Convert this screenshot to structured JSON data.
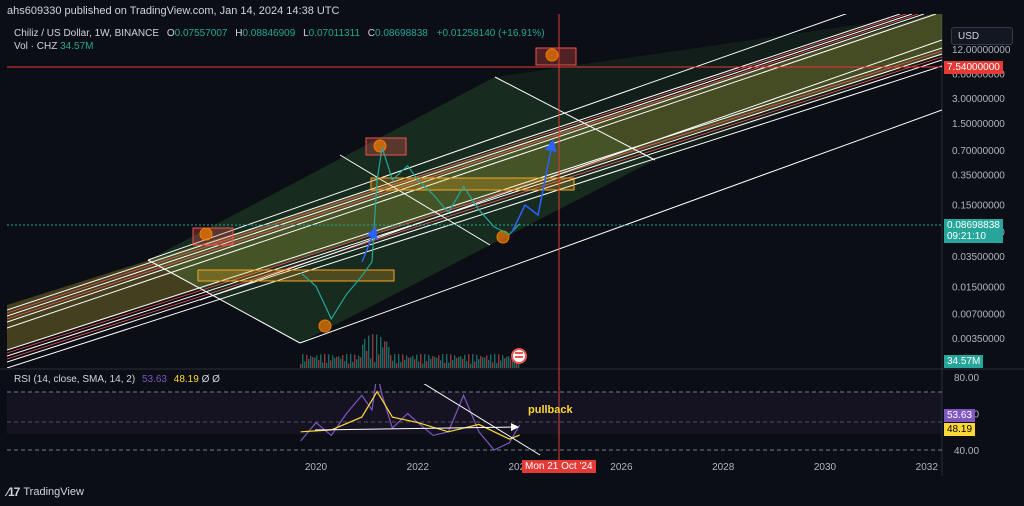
{
  "header": {
    "published": "ahs609330 published on TradingView.com, Jan 14, 2024 14:38 UTC"
  },
  "legend": {
    "symbol": "Chiliz / US Dollar, 1W, BINANCE",
    "o_label": "O",
    "o_value": "0.07557007",
    "h_label": "H",
    "h_value": "0.08846909",
    "l_label": "L",
    "l_value": "0.07011311",
    "c_label": "C",
    "c_value": "0.08698838",
    "change": "+0.01258140 (+16.91%)",
    "vol_label": "Vol · CHZ",
    "vol_value": "34.57M"
  },
  "rsi_legend": {
    "label": "RSI (14, close, SMA, 14, 2)",
    "rsi_value": "53.63",
    "sma_value": "48.19",
    "extra": "Ø Ø"
  },
  "currency_button": "USD",
  "annotation": "pullback",
  "crosshair": {
    "price_label": "7.54000000",
    "date_label": "Mon 21 Oct '24"
  },
  "current_price": {
    "price": "0.08698838",
    "countdown": "09:21:10"
  },
  "volume_tag": "34.57M",
  "rsi_tags": {
    "rsi": "53.63",
    "sma": "48.19"
  },
  "footer": {
    "brand": "TradingView"
  },
  "colors": {
    "background": "#0c0e15",
    "up": "#26a69a",
    "down": "#ef5350",
    "rsi_line": "#7e57c2",
    "rsi_sma": "#fdd835",
    "crosshair": "#e53935",
    "arrow": "#2962ff",
    "zone_fill": "#d9c33a"
  },
  "chart_data": {
    "type": "line",
    "price_axis": {
      "scale": "log",
      "ticks": [
        "12.00000000",
        "7.54000000",
        "6.00000000",
        "3.00000000",
        "1.50000000",
        "0.70000000",
        "0.35000000",
        "0.15000000",
        "0.07000000",
        "0.03500000",
        "0.01500000",
        "0.00700000",
        "0.00350000"
      ]
    },
    "time_axis": {
      "ticks": [
        "2020",
        "2022",
        "2024",
        "2026",
        "2028",
        "2030",
        "2032"
      ]
    },
    "rsi_axis": {
      "ticks": [
        "80.00",
        "60.00",
        "40.00"
      ]
    },
    "price_series": {
      "name": "CHZ/USD",
      "x": [
        2019.7,
        2020.0,
        2020.3,
        2020.6,
        2020.9,
        2021.1,
        2021.2,
        2021.3,
        2021.5,
        2021.8,
        2022.0,
        2022.3,
        2022.6,
        2022.9,
        2023.2,
        2023.5,
        2023.8,
        2024.0
      ],
      "values": [
        0.022,
        0.015,
        0.006,
        0.012,
        0.02,
        0.03,
        0.3,
        0.75,
        0.3,
        0.45,
        0.3,
        0.2,
        0.12,
        0.25,
        0.13,
        0.08,
        0.065,
        0.087
      ]
    },
    "rsi_series": {
      "name": "RSI",
      "x": [
        2019.7,
        2020.0,
        2020.3,
        2020.6,
        2020.9,
        2021.1,
        2021.2,
        2021.3,
        2021.5,
        2021.8,
        2022.0,
        2022.3,
        2022.6,
        2022.9,
        2023.2,
        2023.5,
        2023.8,
        2024.0
      ],
      "values": [
        45,
        55,
        48,
        60,
        70,
        62,
        82,
        70,
        52,
        60,
        55,
        48,
        50,
        70,
        50,
        40,
        44,
        53.63
      ]
    },
    "rsi_sma_series": {
      "name": "SMA",
      "x": [
        2019.7,
        2020.3,
        2020.9,
        2021.2,
        2021.5,
        2022.0,
        2022.6,
        2023.2,
        2023.8,
        2024.0
      ],
      "values": [
        50,
        51,
        58,
        72,
        58,
        55,
        50,
        54,
        46,
        48.19
      ]
    }
  }
}
